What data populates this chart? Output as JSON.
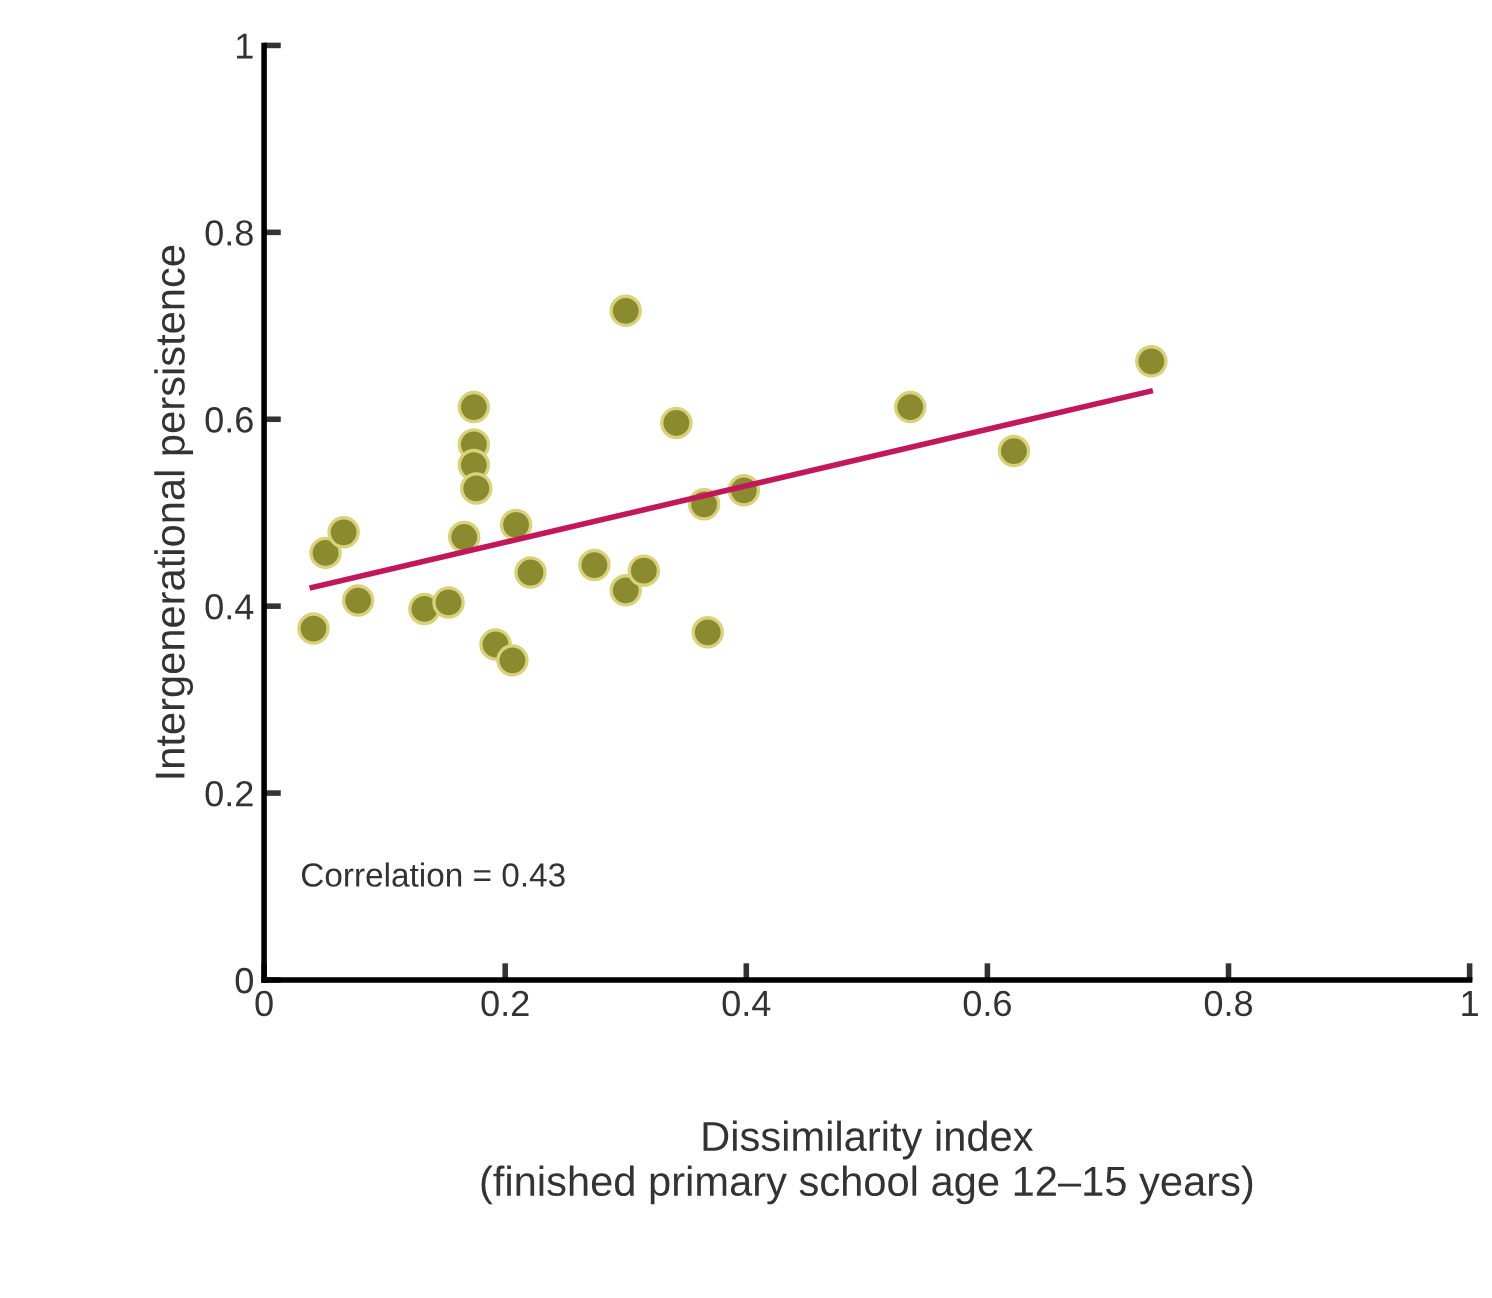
{
  "chart_data": {
    "type": "scatter",
    "xlabel": "Dissimilarity index\n(finished primary school age 12–15 years)",
    "ylabel": "Intergenerational persistence",
    "annotations": [
      "Correlation = 0.43"
    ],
    "xlim": [
      0,
      1
    ],
    "ylim": [
      0,
      1
    ],
    "xticks": [
      0,
      0.2,
      0.4,
      0.6,
      0.8,
      1
    ],
    "yticks": [
      0,
      0.2,
      0.4,
      0.6,
      0.8,
      1
    ],
    "grid": false,
    "marker": "circle",
    "series": [
      {
        "color": "#8a8a2e",
        "x": [
          0.041,
          0.051,
          0.066,
          0.078,
          0.133,
          0.153,
          0.166,
          0.174,
          0.174,
          0.174,
          0.176,
          0.192,
          0.206,
          0.209,
          0.221,
          0.274,
          0.3,
          0.3,
          0.315,
          0.342,
          0.368,
          0.365,
          0.398,
          0.536,
          0.622,
          0.736
        ],
        "values": [
          0.376,
          0.457,
          0.479,
          0.406,
          0.397,
          0.404,
          0.474,
          0.613,
          0.573,
          0.551,
          0.526,
          0.359,
          0.342,
          0.487,
          0.436,
          0.444,
          0.716,
          0.417,
          0.438,
          0.596,
          0.372,
          0.509,
          0.524,
          0.613,
          0.566,
          0.662
        ]
      },
      {
        "type": "line",
        "color": "#c2185b",
        "marker": "none",
        "line_style": "solid",
        "x": [
          0.04,
          0.735
        ],
        "values": [
          0.42,
          0.63
        ]
      }
    ]
  }
}
